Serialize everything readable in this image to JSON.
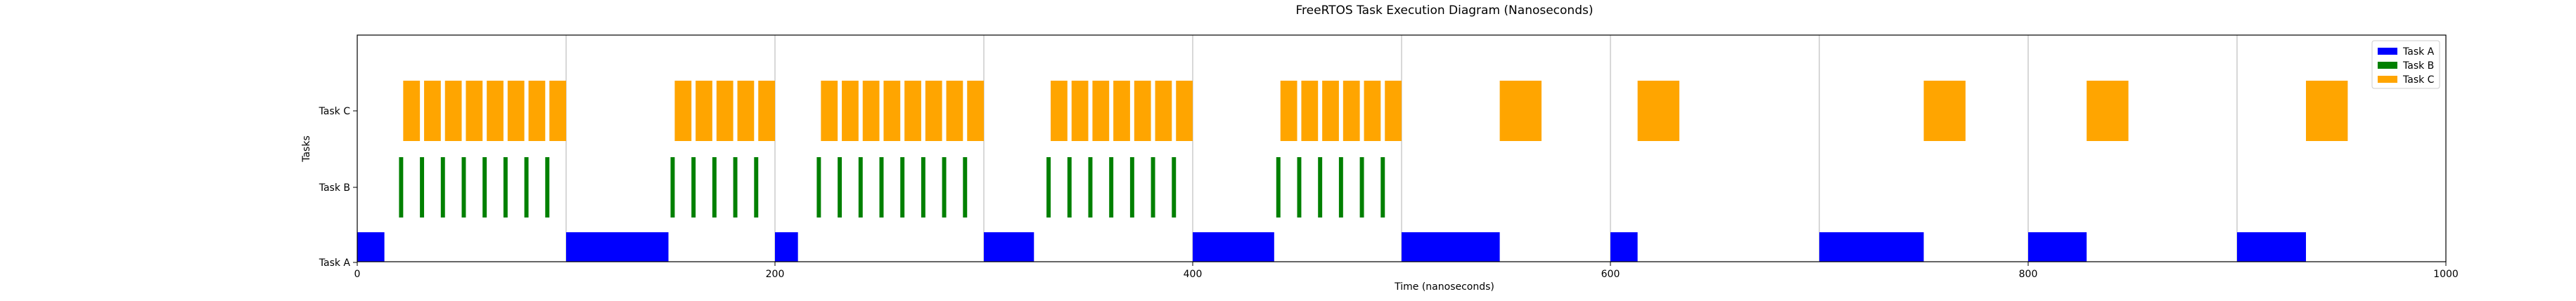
{
  "chart_data": {
    "type": "bar",
    "orientation": "horizontal",
    "title": "FreeRTOS Task Execution Diagram (Nanoseconds)",
    "xlabel": "Time (nanoseconds)",
    "ylabel": "Tasks",
    "xlim": [
      0,
      1000
    ],
    "xticks": [
      0,
      200,
      400,
      600,
      800,
      1000
    ],
    "categories": [
      "Task A",
      "Task B",
      "Task C"
    ],
    "grid": "x",
    "legend": "top-right",
    "series": [
      {
        "name": "Task A",
        "color": "#0000ff",
        "row": 0,
        "intervals": [
          [
            0,
            13
          ],
          [
            100,
            149
          ],
          [
            200,
            211
          ],
          [
            300,
            324
          ],
          [
            400,
            439
          ],
          [
            500,
            547
          ],
          [
            600,
            613
          ],
          [
            700,
            750
          ],
          [
            800,
            828
          ],
          [
            900,
            933
          ]
        ]
      },
      {
        "name": "Task B",
        "color": "#008000",
        "row": 1,
        "intervals": [
          [
            20,
            22
          ],
          [
            30,
            32
          ],
          [
            40,
            42
          ],
          [
            50,
            52
          ],
          [
            60,
            62
          ],
          [
            70,
            72
          ],
          [
            80,
            82
          ],
          [
            90,
            92
          ],
          [
            150,
            152
          ],
          [
            160,
            162
          ],
          [
            170,
            172
          ],
          [
            180,
            182
          ],
          [
            190,
            192
          ],
          [
            220,
            222
          ],
          [
            230,
            232
          ],
          [
            240,
            242
          ],
          [
            250,
            252
          ],
          [
            260,
            262
          ],
          [
            270,
            272
          ],
          [
            280,
            282
          ],
          [
            290,
            292
          ],
          [
            330,
            332
          ],
          [
            340,
            342
          ],
          [
            350,
            352
          ],
          [
            360,
            362
          ],
          [
            370,
            372
          ],
          [
            380,
            382
          ],
          [
            390,
            392
          ],
          [
            440,
            442
          ],
          [
            450,
            452
          ],
          [
            460,
            462
          ],
          [
            470,
            472
          ],
          [
            480,
            482
          ],
          [
            490,
            492
          ]
        ]
      },
      {
        "name": "Task C",
        "color": "#ffa500",
        "row": 2,
        "intervals": [
          [
            22,
            30
          ],
          [
            32,
            40
          ],
          [
            42,
            50
          ],
          [
            52,
            60
          ],
          [
            62,
            70
          ],
          [
            72,
            80
          ],
          [
            82,
            90
          ],
          [
            92,
            100
          ],
          [
            152,
            160
          ],
          [
            162,
            170
          ],
          [
            172,
            180
          ],
          [
            182,
            190
          ],
          [
            192,
            200
          ],
          [
            222,
            230
          ],
          [
            232,
            240
          ],
          [
            242,
            250
          ],
          [
            252,
            260
          ],
          [
            262,
            270
          ],
          [
            272,
            280
          ],
          [
            282,
            290
          ],
          [
            292,
            300
          ],
          [
            332,
            340
          ],
          [
            342,
            350
          ],
          [
            352,
            360
          ],
          [
            362,
            370
          ],
          [
            372,
            380
          ],
          [
            382,
            390
          ],
          [
            392,
            400
          ],
          [
            442,
            450
          ],
          [
            452,
            460
          ],
          [
            462,
            470
          ],
          [
            472,
            480
          ],
          [
            482,
            490
          ],
          [
            492,
            500
          ],
          [
            547,
            567
          ],
          [
            613,
            633
          ],
          [
            750,
            770
          ],
          [
            828,
            848
          ],
          [
            933,
            953
          ]
        ]
      }
    ]
  }
}
